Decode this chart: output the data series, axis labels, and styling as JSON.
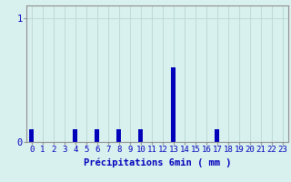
{
  "hours": [
    0,
    1,
    2,
    3,
    4,
    5,
    6,
    7,
    8,
    9,
    10,
    11,
    12,
    13,
    14,
    15,
    16,
    17,
    18,
    19,
    20,
    21,
    22,
    23
  ],
  "values": [
    0.1,
    0,
    0,
    0,
    0.1,
    0,
    0.1,
    0,
    0.1,
    0,
    0.1,
    0,
    0,
    0.6,
    0,
    0,
    0,
    0.1,
    0,
    0,
    0,
    0,
    0,
    0
  ],
  "bar_color": "#0000bb",
  "background_color": "#d8f0ee",
  "grid_color": "#b8d8d4",
  "spine_color": "#909090",
  "text_color": "#0000bb",
  "xlabel": "Précipitations 6min ( mm )",
  "ylim": [
    0,
    1.1
  ],
  "yticks": [
    0,
    1
  ],
  "ytick_labels": [
    "0",
    "1"
  ],
  "xlim": [
    -0.5,
    23.5
  ],
  "bar_width": 0.4,
  "tick_fontsize": 6.5,
  "xlabel_fontsize": 7.5
}
